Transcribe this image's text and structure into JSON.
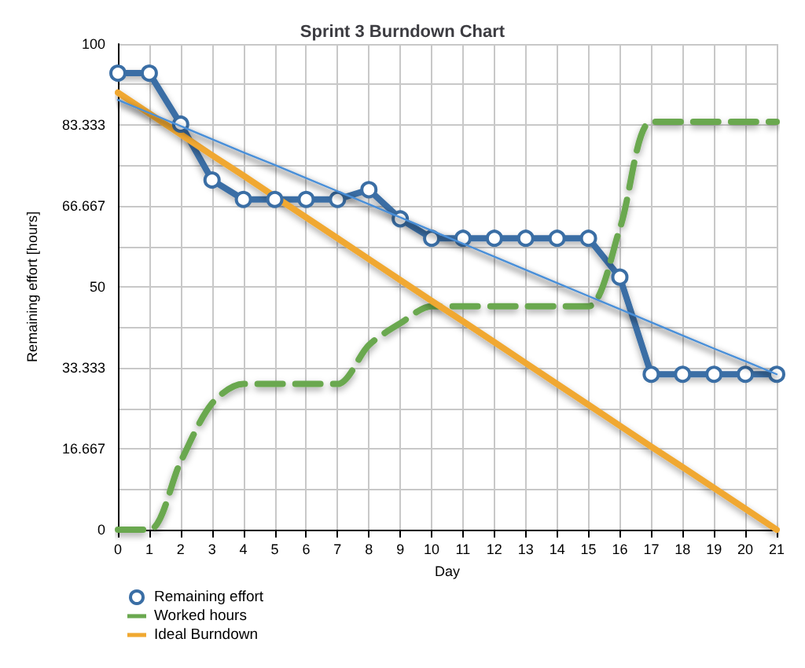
{
  "chart_data": {
    "type": "line",
    "title": "Sprint 3 Burndown Chart",
    "xlabel": "Day",
    "ylabel": "Remaining effort [hours]",
    "x": [
      0,
      1,
      2,
      3,
      4,
      5,
      6,
      7,
      8,
      9,
      10,
      11,
      12,
      13,
      14,
      15,
      16,
      17,
      18,
      19,
      20,
      21
    ],
    "xlim": [
      0,
      21
    ],
    "xticks": [
      0,
      1,
      2,
      3,
      4,
      5,
      6,
      7,
      8,
      9,
      10,
      11,
      12,
      13,
      14,
      15,
      16,
      17,
      18,
      19,
      20,
      21
    ],
    "ylim": [
      0,
      100
    ],
    "yticks": [
      0,
      {
        "value": 8.333,
        "label": null
      },
      {
        "value": 16.667,
        "label": "16.667"
      },
      {
        "value": 25,
        "label": null
      },
      {
        "value": 33.333,
        "label": "33.333"
      },
      {
        "value": 41.667,
        "label": null
      },
      50,
      {
        "value": 58.333,
        "label": null
      },
      {
        "value": 66.667,
        "label": "66.667"
      },
      {
        "value": 75,
        "label": null
      },
      {
        "value": 83.333,
        "label": "83.333"
      },
      {
        "value": 91.667,
        "label": null
      },
      100
    ],
    "grid": true,
    "legend": "bottom left",
    "series": [
      {
        "name": "Remaining effort",
        "color": "#3a6ea5",
        "marker": "circle",
        "values": [
          94,
          94,
          83.5,
          72,
          68,
          68,
          68,
          68,
          70,
          64,
          60,
          60,
          60,
          60,
          60,
          60,
          52,
          32,
          32,
          32,
          32,
          32
        ]
      },
      {
        "name": "Worked hours",
        "color": "#6aa84f",
        "line_style": "dashed",
        "marker": "none",
        "values": [
          0,
          0,
          14,
          26,
          30,
          30,
          30,
          30,
          38,
          42.5,
          46,
          46,
          46,
          46,
          46,
          46,
          62,
          84,
          84,
          84,
          84,
          84
        ]
      },
      {
        "name": "Ideal Burndown",
        "color": "#f0a830",
        "marker": "none",
        "values": [
          90,
          85.7,
          81.4,
          77.1,
          72.9,
          68.6,
          64.3,
          60,
          55.7,
          51.4,
          47.1,
          42.9,
          38.6,
          34.3,
          30,
          25.7,
          21.4,
          17.1,
          12.9,
          8.6,
          4.3,
          0
        ]
      },
      {
        "color": "#4a8fd8",
        "marker": "none",
        "values": [
          88.5,
          85.8,
          83.1,
          80.4,
          77.7,
          75.1,
          72.4,
          69.7,
          67,
          64.3,
          61.6,
          58.9,
          56.2,
          53.5,
          50.8,
          48.1,
          45.4,
          42.7,
          40,
          37.3,
          34.7,
          32
        ]
      }
    ]
  }
}
